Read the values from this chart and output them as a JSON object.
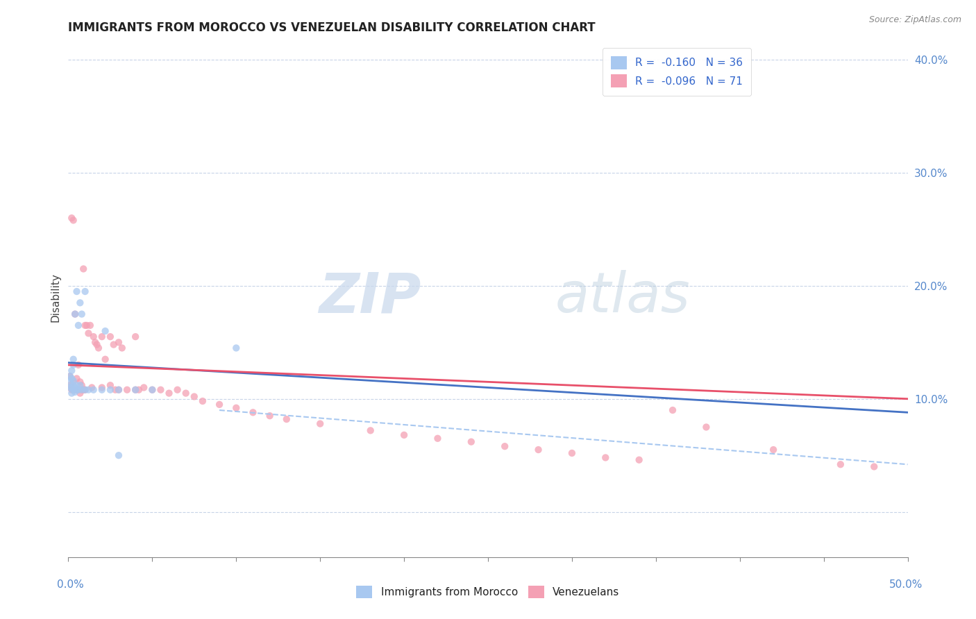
{
  "title": "IMMIGRANTS FROM MOROCCO VS VENEZUELAN DISABILITY CORRELATION CHART",
  "source": "Source: ZipAtlas.com",
  "ylabel": "Disability",
  "legend_blue_label": "R =  -0.160   N = 36",
  "legend_pink_label": "R =  -0.096   N = 71",
  "blue_color": "#a8c8f0",
  "pink_color": "#f4a0b4",
  "blue_line_color": "#4472c4",
  "pink_line_color": "#e8506a",
  "dashed_line_color": "#a8c8f0",
  "watermark_zip": "ZIP",
  "watermark_atlas": "atlas",
  "blue_scatter_x": [
    0.001,
    0.001,
    0.001,
    0.002,
    0.002,
    0.002,
    0.002,
    0.003,
    0.003,
    0.003,
    0.003,
    0.003,
    0.004,
    0.004,
    0.004,
    0.005,
    0.005,
    0.005,
    0.006,
    0.006,
    0.007,
    0.007,
    0.008,
    0.008,
    0.01,
    0.01,
    0.012,
    0.015,
    0.02,
    0.022,
    0.025,
    0.03,
    0.1,
    0.03,
    0.04,
    0.05
  ],
  "blue_scatter_y": [
    0.11,
    0.115,
    0.12,
    0.105,
    0.11,
    0.118,
    0.125,
    0.108,
    0.112,
    0.116,
    0.13,
    0.135,
    0.106,
    0.11,
    0.175,
    0.108,
    0.112,
    0.195,
    0.108,
    0.165,
    0.112,
    0.185,
    0.108,
    0.175,
    0.108,
    0.195,
    0.108,
    0.108,
    0.108,
    0.16,
    0.108,
    0.108,
    0.145,
    0.05,
    0.108,
    0.108
  ],
  "pink_scatter_x": [
    0.001,
    0.001,
    0.002,
    0.002,
    0.003,
    0.003,
    0.003,
    0.004,
    0.004,
    0.005,
    0.005,
    0.006,
    0.006,
    0.007,
    0.007,
    0.008,
    0.008,
    0.009,
    0.009,
    0.01,
    0.01,
    0.011,
    0.012,
    0.013,
    0.014,
    0.015,
    0.016,
    0.017,
    0.018,
    0.02,
    0.02,
    0.022,
    0.025,
    0.025,
    0.027,
    0.028,
    0.03,
    0.03,
    0.032,
    0.035,
    0.04,
    0.04,
    0.042,
    0.045,
    0.05,
    0.055,
    0.06,
    0.065,
    0.07,
    0.075,
    0.08,
    0.09,
    0.1,
    0.11,
    0.12,
    0.13,
    0.15,
    0.18,
    0.2,
    0.22,
    0.24,
    0.26,
    0.28,
    0.3,
    0.32,
    0.34,
    0.36,
    0.38,
    0.42,
    0.46,
    0.48
  ],
  "pink_scatter_y": [
    0.112,
    0.12,
    0.108,
    0.26,
    0.108,
    0.258,
    0.115,
    0.108,
    0.175,
    0.108,
    0.118,
    0.108,
    0.13,
    0.105,
    0.115,
    0.108,
    0.112,
    0.108,
    0.215,
    0.108,
    0.165,
    0.165,
    0.158,
    0.165,
    0.11,
    0.155,
    0.15,
    0.148,
    0.145,
    0.155,
    0.11,
    0.135,
    0.155,
    0.112,
    0.148,
    0.108,
    0.15,
    0.108,
    0.145,
    0.108,
    0.155,
    0.108,
    0.108,
    0.11,
    0.108,
    0.108,
    0.105,
    0.108,
    0.105,
    0.102,
    0.098,
    0.095,
    0.092,
    0.088,
    0.085,
    0.082,
    0.078,
    0.072,
    0.068,
    0.065,
    0.062,
    0.058,
    0.055,
    0.052,
    0.048,
    0.046,
    0.09,
    0.075,
    0.055,
    0.042,
    0.04
  ],
  "blue_line": {
    "x0": 0.0,
    "y0": 0.132,
    "x1": 0.5,
    "y1": 0.088
  },
  "pink_line": {
    "x0": 0.0,
    "y0": 0.13,
    "x1": 0.5,
    "y1": 0.1
  },
  "dashed_line": {
    "x0": 0.09,
    "y0": 0.09,
    "x1": 0.5,
    "y1": 0.042
  },
  "xlim": [
    0.0,
    0.5
  ],
  "ylim": [
    -0.04,
    0.42
  ],
  "right_yticks": [
    0.0,
    0.1,
    0.2,
    0.3,
    0.4
  ],
  "right_yticklabels": [
    "",
    "10.0%",
    "20.0%",
    "30.0%",
    "40.0%"
  ],
  "background_color": "#ffffff",
  "grid_color": "#c8d4e8"
}
